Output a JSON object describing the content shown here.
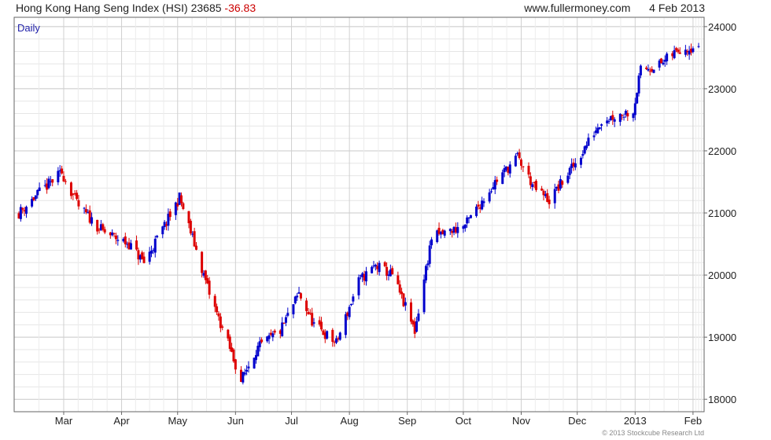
{
  "header": {
    "title": "Hong Kong Hang Seng Index (HSI)",
    "last": "23685",
    "change": "-36.83",
    "site": "www.fullermoney.com",
    "date": "4 Feb 2013"
  },
  "chart_data": {
    "type": "candlestick",
    "period_label": "Daily",
    "copyright": "© 2013 Stockcube Research Ltd",
    "y_ticks": [
      18000,
      19000,
      20000,
      21000,
      22000,
      23000,
      24000
    ],
    "ylim": [
      17800,
      24150
    ],
    "x_ticks": [
      "Mar",
      "Apr",
      "May",
      "Jun",
      "Jul",
      "Aug",
      "Sep",
      "Oct",
      "Nov",
      "Dec",
      "2013",
      "Feb"
    ],
    "grid": true,
    "up_color": "#0000cc",
    "down_color": "#dd0000",
    "approx_close_path": [
      {
        "date": "2012-02-06",
        "close": 21000
      },
      {
        "date": "2012-02-16",
        "close": 21300
      },
      {
        "date": "2012-02-29",
        "close": 21650
      },
      {
        "date": "2012-03-09",
        "close": 21100
      },
      {
        "date": "2012-03-22",
        "close": 20700
      },
      {
        "date": "2012-04-05",
        "close": 20500
      },
      {
        "date": "2012-04-13",
        "close": 20200
      },
      {
        "date": "2012-04-26",
        "close": 20900
      },
      {
        "date": "2012-05-02",
        "close": 21250
      },
      {
        "date": "2012-05-10",
        "close": 20500
      },
      {
        "date": "2012-05-18",
        "close": 19700
      },
      {
        "date": "2012-05-28",
        "close": 18900
      },
      {
        "date": "2012-06-04",
        "close": 18300
      },
      {
        "date": "2012-06-12",
        "close": 18800
      },
      {
        "date": "2012-06-25",
        "close": 19100
      },
      {
        "date": "2012-07-05",
        "close": 19700
      },
      {
        "date": "2012-07-13",
        "close": 19200
      },
      {
        "date": "2012-07-25",
        "close": 18900
      },
      {
        "date": "2012-08-06",
        "close": 19900
      },
      {
        "date": "2012-08-15",
        "close": 20150
      },
      {
        "date": "2012-08-24",
        "close": 20000
      },
      {
        "date": "2012-09-05",
        "close": 19100
      },
      {
        "date": "2012-09-14",
        "close": 20600
      },
      {
        "date": "2012-10-02",
        "close": 20800
      },
      {
        "date": "2012-10-18",
        "close": 21500
      },
      {
        "date": "2012-10-30",
        "close": 21900
      },
      {
        "date": "2012-11-08",
        "close": 21400
      },
      {
        "date": "2012-11-16",
        "close": 21200
      },
      {
        "date": "2012-11-30",
        "close": 21800
      },
      {
        "date": "2012-12-14",
        "close": 22500
      },
      {
        "date": "2012-12-31",
        "close": 22650
      },
      {
        "date": "2013-01-04",
        "close": 23300
      },
      {
        "date": "2013-01-15",
        "close": 23400
      },
      {
        "date": "2013-01-25",
        "close": 23650
      },
      {
        "date": "2013-02-04",
        "close": 23685
      }
    ]
  }
}
